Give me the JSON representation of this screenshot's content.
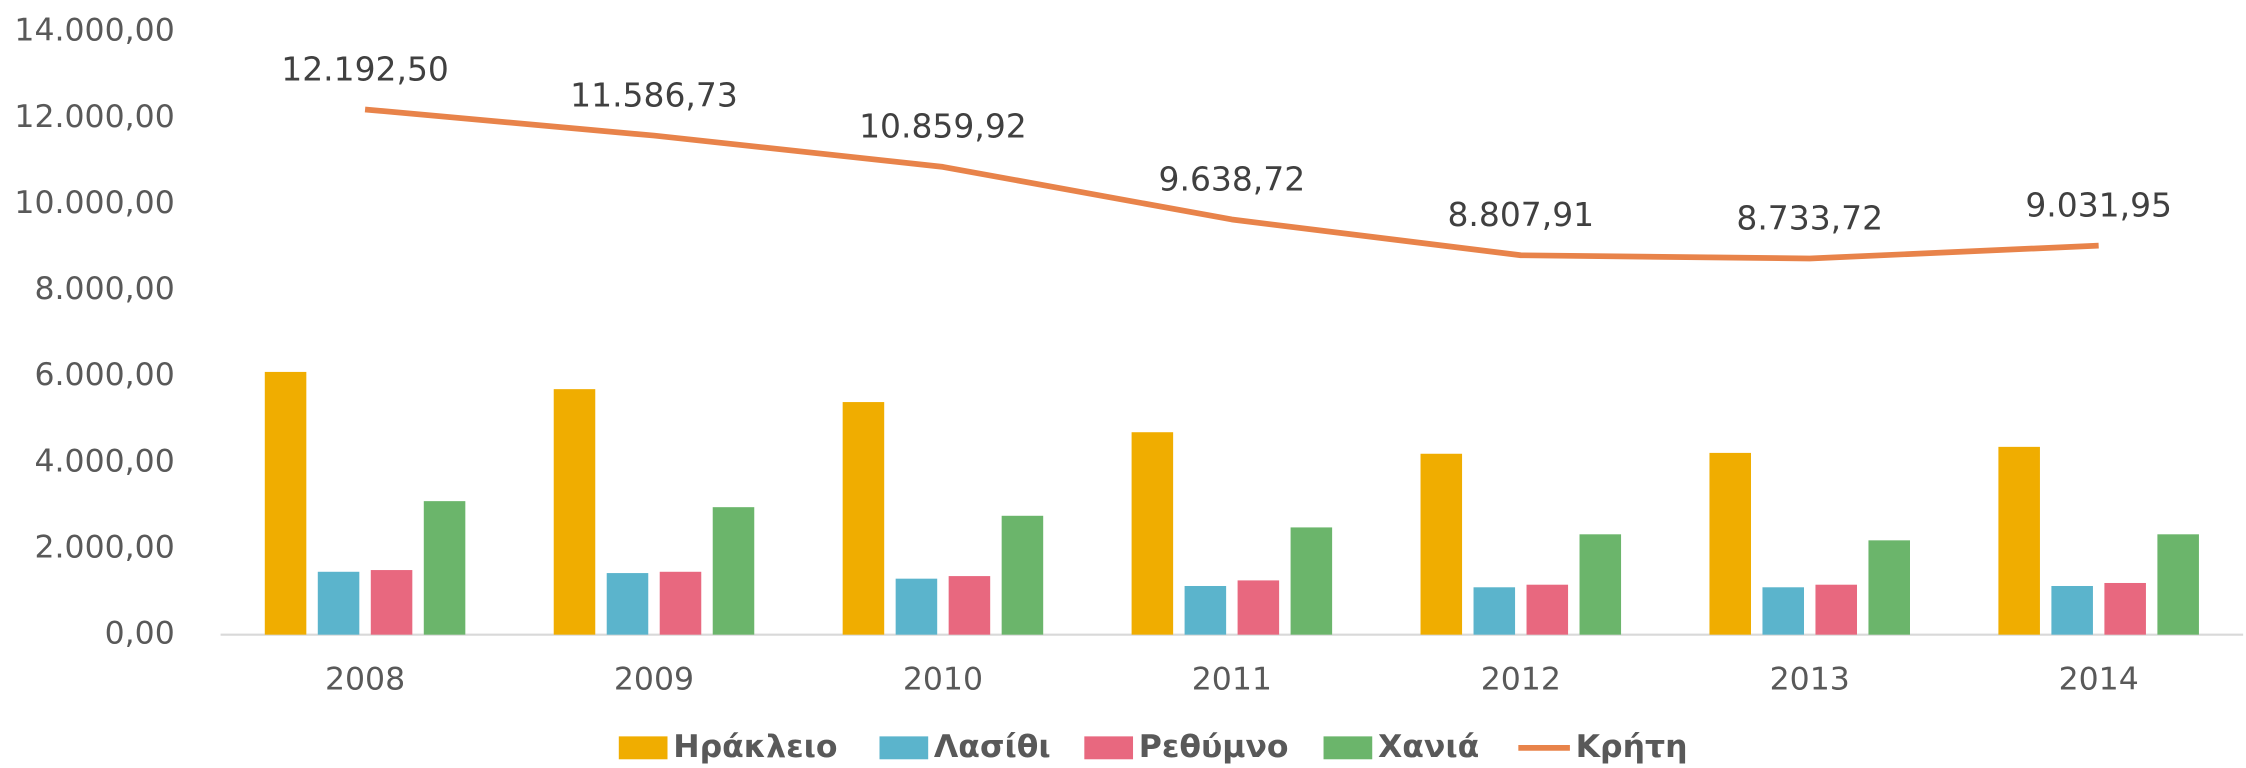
{
  "chart_data": {
    "type": "bar_line",
    "categories": [
      "2008",
      "2009",
      "2010",
      "2011",
      "2012",
      "2013",
      "2014"
    ],
    "series": [
      {
        "name": "Ηράκλειο",
        "color": "#f0ad00",
        "type": "bar",
        "values": [
          6100,
          5700,
          5400,
          4700,
          4200,
          4220,
          4360
        ]
      },
      {
        "name": "Λασίθι",
        "color": "#5bb4cc",
        "type": "bar",
        "values": [
          1460,
          1430,
          1300,
          1130,
          1100,
          1100,
          1130
        ]
      },
      {
        "name": "Ρεθύμνο",
        "color": "#e8687f",
        "type": "bar",
        "values": [
          1500,
          1460,
          1360,
          1260,
          1160,
          1160,
          1200
        ]
      },
      {
        "name": "Χανιά",
        "color": "#6bb56b",
        "type": "bar",
        "values": [
          3100,
          2960,
          2760,
          2490,
          2330,
          2190,
          2330
        ]
      },
      {
        "name": "Κρήτη",
        "color": "#e8834a",
        "type": "line",
        "values": [
          12192.5,
          11586.73,
          10859.92,
          9638.72,
          8807.91,
          8733.72,
          9031.95
        ],
        "value_labels": [
          "12.192,50",
          "11.586,73",
          "10.859,92",
          "9.638,72",
          "8.807,91",
          "8.733,72",
          "9.031,95"
        ]
      }
    ],
    "ylim": [
      0,
      14000
    ],
    "yticks": [
      {
        "value": 0,
        "label": "0,00"
      },
      {
        "value": 2000,
        "label": "2.000,00"
      },
      {
        "value": 4000,
        "label": "4.000,00"
      },
      {
        "value": 6000,
        "label": "6.000,00"
      },
      {
        "value": 8000,
        "label": "8.000,00"
      },
      {
        "value": 10000,
        "label": "10.000,00"
      },
      {
        "value": 12000,
        "label": "12.000,00"
      },
      {
        "value": 14000,
        "label": "14.000,00"
      }
    ],
    "legend": "bottom"
  }
}
